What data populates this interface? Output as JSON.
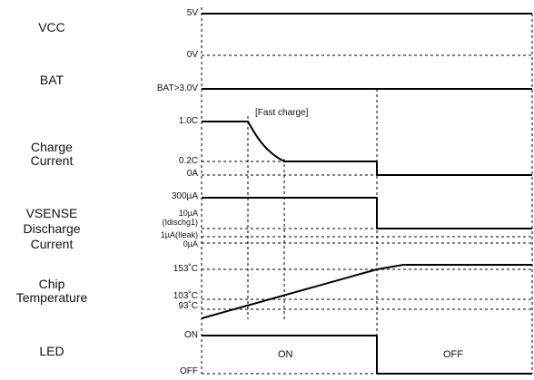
{
  "signals": {
    "vcc": "VCC",
    "bat": "BAT",
    "charge_current": [
      "Charge",
      "Current"
    ],
    "discharge_current": [
      "VSENSE",
      "Discharge",
      "Current"
    ],
    "chip_temperature": [
      "Chip",
      "Temperature"
    ],
    "led": "LED"
  },
  "levels": {
    "vcc_high": "5V",
    "vcc_low": "0V",
    "bat_level": "BAT>3.0V",
    "charge_1c": "1.0C",
    "charge_02c": "0.2C",
    "charge_0a": "0A",
    "dis_300": "300µA",
    "dis_10": "10µA",
    "dis_10_name": "(Idischg1)",
    "dis_1": "1µA(Ileak)",
    "dis_0": "0µA",
    "temp_153": "153˚C",
    "temp_103": "103˚C",
    "temp_93": "93˚C",
    "led_on": "ON",
    "led_off": "OFF"
  },
  "annotations": {
    "fast_charge": "[Fast charge]",
    "led_state_on": "ON",
    "led_state_off": "OFF"
  }
}
